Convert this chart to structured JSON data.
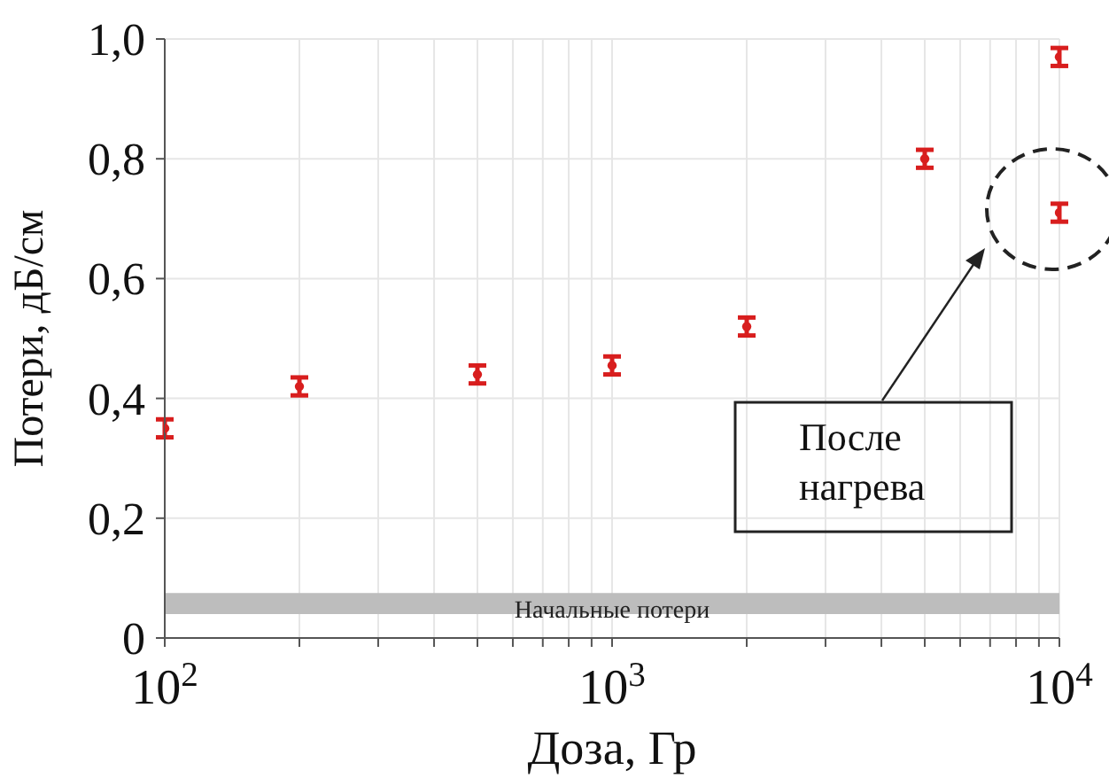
{
  "chart_data": {
    "type": "scatter",
    "xlabel": "Доза, Гр",
    "ylabel": "Потери, дБ/см",
    "log": "x",
    "x": [
      100,
      200,
      500,
      1000,
      2000,
      5000,
      10000,
      10000
    ],
    "values": [
      0.35,
      0.42,
      0.44,
      0.455,
      0.52,
      0.8,
      0.97,
      0.71
    ],
    "errors": [
      0.015,
      0.015,
      0.015,
      0.015,
      0.015,
      0.015,
      0.015,
      0.015
    ],
    "color": "#d81e1e",
    "marker": "circle",
    "grid": true,
    "xlim": [
      100,
      10000
    ],
    "xticks": [
      {
        "value": 100,
        "label": "10$^{2}$"
      },
      {
        "value": 200,
        "label": null
      },
      {
        "value": 300,
        "label": null
      },
      {
        "value": 400,
        "label": null
      },
      {
        "value": 500,
        "label": null
      },
      {
        "value": 600,
        "label": null
      },
      {
        "value": 700,
        "label": null
      },
      {
        "value": 800,
        "label": null
      },
      {
        "value": 900,
        "label": null
      },
      {
        "value": 1000,
        "label": "10$^{3}$"
      },
      {
        "value": 2000,
        "label": null
      },
      {
        "value": 3000,
        "label": null
      },
      {
        "value": 4000,
        "label": null
      },
      {
        "value": 5000,
        "label": null
      },
      {
        "value": 6000,
        "label": null
      },
      {
        "value": 7000,
        "label": null
      },
      {
        "value": 8000,
        "label": null
      },
      {
        "value": 9000,
        "label": null
      },
      {
        "value": 10000,
        "label": "10$^{4}$"
      }
    ],
    "ylim": [
      0,
      1
    ],
    "yticks": [
      0,
      {
        "value": 0.2,
        "label": "0,2"
      },
      {
        "value": 0.4,
        "label": "0,4"
      },
      {
        "value": 0.6,
        "label": "0,6"
      },
      {
        "value": 0.8,
        "label": "0,8"
      },
      {
        "value": 1,
        "label": "1,0"
      }
    ],
    "bands": [
      {
        "axis": "y",
        "from": 0.04,
        "to": 0.075,
        "label": "Начальные потери",
        "color": "#bdbdbd"
      }
    ],
    "annotations": [
      "После нагрева"
    ]
  }
}
